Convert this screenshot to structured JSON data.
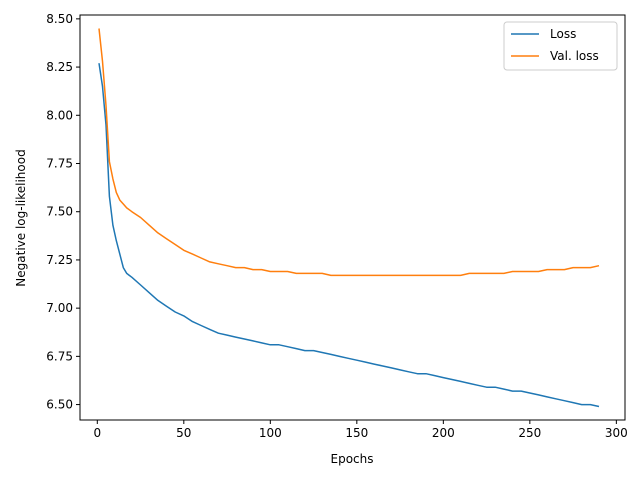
{
  "chart_data": {
    "type": "line",
    "title": "",
    "xlabel": "Epochs",
    "ylabel": "Negative log-likelihood",
    "xlim": [
      -10,
      305
    ],
    "ylim": [
      6.42,
      8.52
    ],
    "xticks": [
      0,
      50,
      100,
      150,
      200,
      250,
      300
    ],
    "yticks": [
      6.5,
      6.75,
      7.0,
      7.25,
      7.5,
      7.75,
      8.0,
      8.25,
      8.5
    ],
    "xtick_labels": [
      "0",
      "50",
      "100",
      "150",
      "200",
      "250",
      "300"
    ],
    "ytick_labels": [
      "6.50",
      "6.75",
      "7.00",
      "7.25",
      "7.50",
      "7.75",
      "8.00",
      "8.25",
      "8.50"
    ],
    "grid": false,
    "legend_position": "top-right",
    "series": [
      {
        "name": "Loss",
        "color": "#1f77b4",
        "x": [
          1,
          3,
          5,
          7,
          9,
          11,
          13,
          15,
          17,
          20,
          25,
          30,
          35,
          40,
          45,
          50,
          55,
          60,
          65,
          70,
          75,
          80,
          85,
          90,
          95,
          100,
          105,
          110,
          115,
          120,
          125,
          130,
          135,
          140,
          145,
          150,
          155,
          160,
          165,
          170,
          175,
          180,
          185,
          190,
          195,
          200,
          205,
          210,
          215,
          220,
          225,
          230,
          235,
          240,
          245,
          250,
          255,
          260,
          265,
          270,
          275,
          280,
          285,
          290
        ],
        "y": [
          8.27,
          8.15,
          7.95,
          7.58,
          7.43,
          7.35,
          7.28,
          7.21,
          7.18,
          7.16,
          7.12,
          7.08,
          7.04,
          7.01,
          6.98,
          6.96,
          6.93,
          6.91,
          6.89,
          6.87,
          6.86,
          6.85,
          6.84,
          6.83,
          6.82,
          6.81,
          6.81,
          6.8,
          6.79,
          6.78,
          6.78,
          6.77,
          6.76,
          6.75,
          6.74,
          6.73,
          6.72,
          6.71,
          6.7,
          6.69,
          6.68,
          6.67,
          6.66,
          6.66,
          6.65,
          6.64,
          6.63,
          6.62,
          6.61,
          6.6,
          6.59,
          6.59,
          6.58,
          6.57,
          6.57,
          6.56,
          6.55,
          6.54,
          6.53,
          6.52,
          6.51,
          6.5,
          6.5,
          6.49
        ]
      },
      {
        "name": "Val. loss",
        "color": "#ff7f0e",
        "x": [
          1,
          3,
          5,
          7,
          9,
          11,
          13,
          15,
          17,
          20,
          25,
          30,
          35,
          40,
          45,
          50,
          55,
          60,
          65,
          70,
          75,
          80,
          85,
          90,
          95,
          100,
          105,
          110,
          115,
          120,
          125,
          130,
          135,
          140,
          145,
          150,
          155,
          160,
          165,
          170,
          175,
          180,
          185,
          190,
          195,
          200,
          205,
          210,
          215,
          220,
          225,
          230,
          235,
          240,
          245,
          250,
          255,
          260,
          265,
          270,
          275,
          280,
          285,
          290
        ],
        "y": [
          8.45,
          8.28,
          8.05,
          7.76,
          7.67,
          7.6,
          7.56,
          7.54,
          7.52,
          7.5,
          7.47,
          7.43,
          7.39,
          7.36,
          7.33,
          7.3,
          7.28,
          7.26,
          7.24,
          7.23,
          7.22,
          7.21,
          7.21,
          7.2,
          7.2,
          7.19,
          7.19,
          7.19,
          7.18,
          7.18,
          7.18,
          7.18,
          7.17,
          7.17,
          7.17,
          7.17,
          7.17,
          7.17,
          7.17,
          7.17,
          7.17,
          7.17,
          7.17,
          7.17,
          7.17,
          7.17,
          7.17,
          7.17,
          7.18,
          7.18,
          7.18,
          7.18,
          7.18,
          7.19,
          7.19,
          7.19,
          7.19,
          7.2,
          7.2,
          7.2,
          7.21,
          7.21,
          7.21,
          7.22
        ]
      }
    ]
  }
}
